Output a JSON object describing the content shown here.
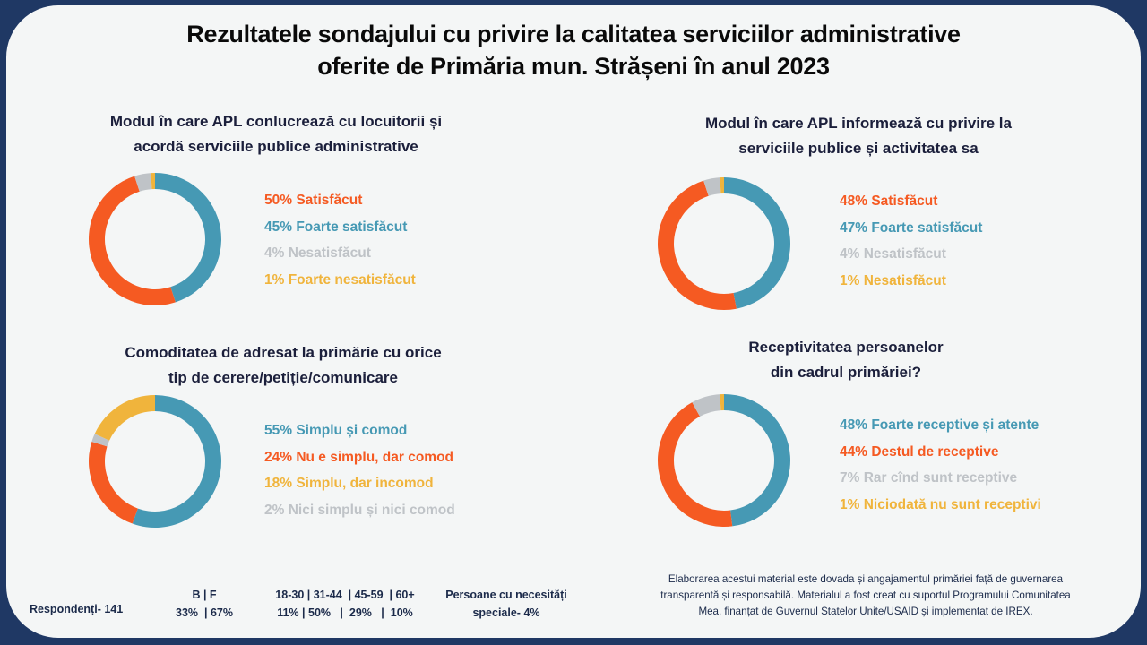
{
  "title_lines": [
    "Rezultatele sondajului cu privire la calitatea serviciilor administrative",
    "oferite de Primăria mun. Strășeni în anul 2023"
  ],
  "colors": {
    "orange": "#f55a22",
    "blue": "#4699b4",
    "gray": "#bfc3c7",
    "yellow": "#f0b43c",
    "background": "#f4f6f6",
    "frame": "#1f3864"
  },
  "chart_data": [
    {
      "type": "pie",
      "variant": "donut",
      "title_lines": [
        "Modul în care APL conlucrează cu locuitorii și",
        "acordă serviciile publice administrative"
      ],
      "slices": [
        {
          "label": "Foarte satisfăcut",
          "value": 45,
          "color": "#4699b4"
        },
        {
          "label": "Satisfăcut",
          "value": 50,
          "color": "#f55a22"
        },
        {
          "label": "Nesatisfăcut",
          "value": 4,
          "color": "#bfc3c7"
        },
        {
          "label": "Foarte nesatisfăcut",
          "value": 1,
          "color": "#f0b43c"
        }
      ],
      "legend": [
        {
          "text": "50% Satisfăcut",
          "color": "#f55a22"
        },
        {
          "text": "45% Foarte satisfăcut",
          "color": "#4699b4"
        },
        {
          "text": "4% Nesatisfăcut",
          "color": "#bfc3c7"
        },
        {
          "text": "1% Foarte nesatisfăcut",
          "color": "#f0b43c"
        }
      ],
      "legend_placement": "right"
    },
    {
      "type": "pie",
      "variant": "donut",
      "title_lines": [
        "Modul în care APL informează cu privire la",
        "serviciile publice și activitatea sa"
      ],
      "slices": [
        {
          "label": "Foarte satisfăcut",
          "value": 47,
          "color": "#4699b4"
        },
        {
          "label": "Satisfăcut",
          "value": 48,
          "color": "#f55a22"
        },
        {
          "label": "Nesatisfăcut",
          "value": 4,
          "color": "#bfc3c7"
        },
        {
          "label": "Nesatisfăcut",
          "value": 1,
          "color": "#f0b43c"
        }
      ],
      "legend": [
        {
          "text": "48% Satisfăcut",
          "color": "#f55a22"
        },
        {
          "text": "47% Foarte satisfăcut",
          "color": "#4699b4"
        },
        {
          "text": "4% Nesatisfăcut",
          "color": "#bfc3c7"
        },
        {
          "text": "1% Nesatisfăcut",
          "color": "#f0b43c"
        }
      ],
      "legend_placement": "right"
    },
    {
      "type": "pie",
      "variant": "donut",
      "title_lines": [
        "Comoditatea de adresat la primărie cu orice",
        "tip de cerere/petiție/comunicare"
      ],
      "slices": [
        {
          "label": "Simplu și comod",
          "value": 55,
          "color": "#4699b4"
        },
        {
          "label": "Nu e simplu, dar comod",
          "value": 24,
          "color": "#f55a22"
        },
        {
          "label": "Nici simplu și nici comod",
          "value": 2,
          "color": "#bfc3c7"
        },
        {
          "label": "Simplu, dar incomod",
          "value": 18,
          "color": "#f0b43c"
        }
      ],
      "legend": [
        {
          "text": "55% Simplu și comod",
          "color": "#4699b4"
        },
        {
          "text": "24% Nu e simplu, dar comod",
          "color": "#f55a22"
        },
        {
          "text": "18% Simplu, dar incomod",
          "color": "#f0b43c"
        },
        {
          "text": "2% Nici simplu și nici comod",
          "color": "#bfc3c7"
        }
      ],
      "legend_placement": "right"
    },
    {
      "type": "pie",
      "variant": "donut",
      "title_lines": [
        "Receptivitatea persoanelor",
        "din cadrul primăriei?"
      ],
      "slices": [
        {
          "label": "Foarte receptive și atente",
          "value": 48,
          "color": "#4699b4"
        },
        {
          "label": "Destul de receptive",
          "value": 44,
          "color": "#f55a22"
        },
        {
          "label": "Rar cînd sunt receptive",
          "value": 7,
          "color": "#bfc3c7"
        },
        {
          "label": "Niciodată nu sunt receptivi",
          "value": 1,
          "color": "#f0b43c"
        }
      ],
      "legend": [
        {
          "text": "48% Foarte receptive și atente",
          "color": "#4699b4"
        },
        {
          "text": "44% Destul de receptive",
          "color": "#f55a22"
        },
        {
          "text": "7% Rar cînd sunt receptive",
          "color": "#bfc3c7"
        },
        {
          "text": "1% Niciodată nu sunt receptivi",
          "color": "#f0b43c"
        }
      ],
      "legend_placement": "right"
    }
  ],
  "footer": {
    "respondents": "Respondenți- 141",
    "gender_header": "B | F",
    "gender_values": "33%  | 67%",
    "age_header": "18-30 | 31-44  | 45-59  | 60+",
    "age_values": "11% | 50%   |  29%   |  10%",
    "special_line1": "Persoane cu necesități",
    "special_line2": "speciale- 4%",
    "note_lines": [
      "Elaborarea acestui material este dovada și angajamentul primăriei față de guvernarea",
      "transparentă și responsabilă. Materialul a fost creat cu suportul Programului Comunitatea",
      "Mea, finanțat de Guvernul Statelor Unite/USAID și implementat de IREX."
    ]
  }
}
